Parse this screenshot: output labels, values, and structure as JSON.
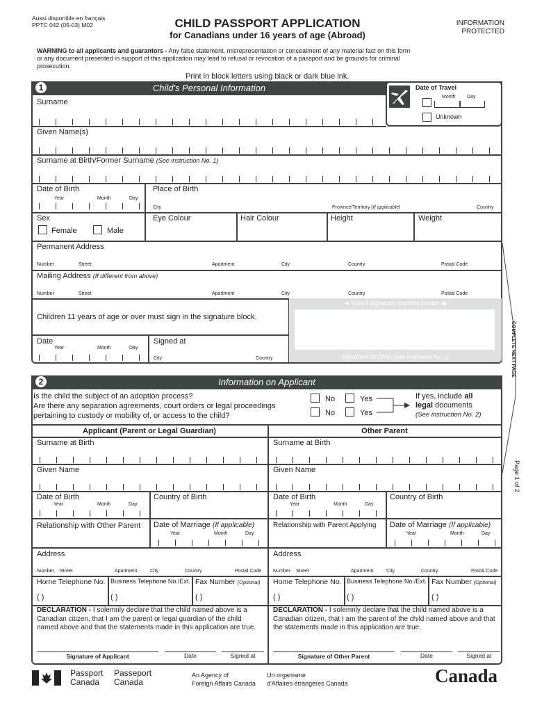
{
  "header": {
    "french": "Aussi disponible en français",
    "form_code": "PPTC 042 (05-03) M02",
    "title": "CHILD PASSPORT APPLICATION",
    "subtitle": "for Canadians under 16 years of age (Abroad)",
    "protected_1": "INFORMATION",
    "protected_2": "PROTECTED",
    "warning_bold": "WARNING to all applicants and guarantors -",
    "warning_text": " Any false statement, misrepresentation or concealment of any material fact on this form or any document presented in support of this application may lead to refusal or revocation of a passport and be grounds for criminal prosecution.",
    "ink": "Print in block letters using black or dark blue ink."
  },
  "section1": {
    "number": "1",
    "title": "Child's Personal Information",
    "travel": {
      "title": "Date of Travel",
      "month": "Month",
      "day": "Day",
      "unknown": "Unknown",
      "icon": "airplane-icon"
    },
    "surname": "Surname",
    "given": "Given Name(s)",
    "surname_birth": "Surname at Birth/Former Surname",
    "surname_birth_note": "(See instruction No. 1)",
    "dob": "Date of Birth",
    "year": "Year",
    "month": "Month",
    "day": "Day",
    "pob": "Place of Birth",
    "city": "City",
    "province": "Province/Territory",
    "province_note": "(If applicable)",
    "country": "Country",
    "sex": "Sex",
    "female": "Female",
    "male": "Male",
    "eye": "Eye Colour",
    "hair": "Hair Colour",
    "height": "Height",
    "weight": "Weight",
    "perm_address": "Permanent Address",
    "mail_address": "Mailing Address",
    "mail_note": "(If different from above)",
    "addr": {
      "number": "Number",
      "street": "Street",
      "apartment": "Apartment",
      "city": "City",
      "country": "Country",
      "postal": "Postal Code"
    },
    "children_sign": "Children 11 years of age or over must sign in the signature block.",
    "date": "Date",
    "signed_at": "Signed at",
    "void": "Void if signature touches border",
    "sig_child": "Signature of Child",
    "sig_child_note": "(See instruction No. 1)"
  },
  "side": {
    "complete": "COMPLETE NEXT PAGE",
    "page": "Page 1 of 2"
  },
  "section2": {
    "number": "2",
    "title": "Information on Applicant",
    "q1": "Is the child the subject of an adoption process?",
    "q2a": "Are there any separation agreements, court orders or legal proceedings",
    "q2b": "pertaining to custody or mobility of, or access to the child?",
    "no": "No",
    "yes": "Yes",
    "ifyes_1": "If yes, include ",
    "ifyes_all": "all",
    "ifyes_legal": "legal",
    "ifyes_2": " documents",
    "ifyes_note": "(See instruction No. 2)",
    "applicant": {
      "heading": "Applicant (Parent or Legal Guardian)",
      "relationship": "Relationship with Other Parent",
      "declaration_bold": "DECLARATION -",
      "declaration": " I solemnly declare that the child named above is a Canadian citizen, that I am the parent or legal guardian of the child named above and that the statements made in this application are true.",
      "signature": "Signature of Applicant"
    },
    "other": {
      "heading": "Other Parent",
      "relationship": "Relationship with Parent Applying",
      "declaration_bold": "DECLARATION -",
      "declaration": " I solemnly declare that the child named above is a Canadian citizen, that I am the parent of the child named above and that the statements made in this application are true.",
      "signature": "Signature of Other Parent"
    },
    "surname_birth": "Surname at Birth",
    "given": "Given Name",
    "dob": "Date of Birth",
    "cob": "Country of Birth",
    "dom": "Date of Marriage",
    "dom_note": "(If applicable)",
    "address": "Address",
    "home_tel": "Home Telephone No.",
    "bus_tel": "Business Telephone No./Ext.",
    "fax": "Fax Number",
    "fax_note": "(Optional)",
    "paren": "(      )",
    "date": "Date",
    "signed_at": "Signed at"
  },
  "footer": {
    "pc_en_1": "Passport",
    "pc_en_2": "Canada",
    "pc_fr_1": "Passeport",
    "pc_fr_2": "Canada",
    "agency_en_1": "An Agency of",
    "agency_en_2": "Foreign Affairs Canada",
    "agency_fr_1": "Un organisme",
    "agency_fr_2": "d'Affaires étrangères Canada",
    "wordmark": "Canada"
  }
}
